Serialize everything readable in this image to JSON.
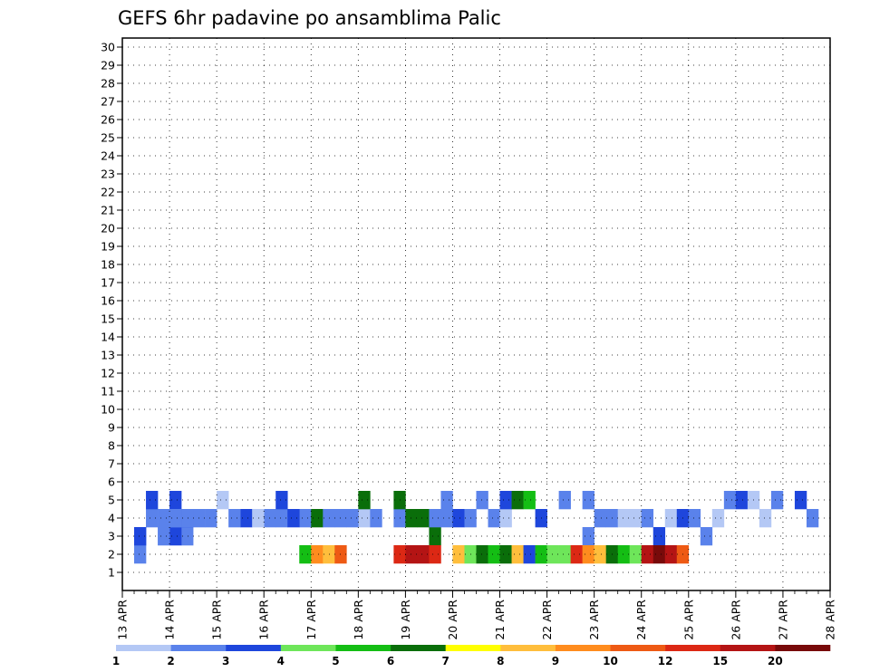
{
  "chart_data": {
    "type": "heatmap",
    "title": "GEFS 6hr padavine po ansamblima Palic",
    "xlabel": "",
    "ylabel": "",
    "x_ticks": [
      "13 APR",
      "14 APR",
      "15 APR",
      "16 APR",
      "17 APR",
      "18 APR",
      "19 APR",
      "20 APR",
      "21 APR",
      "22 APR",
      "23 APR",
      "24 APR",
      "25 APR",
      "26 APR",
      "27 APR",
      "28 APR"
    ],
    "y_ticks": [
      "1",
      "2",
      "3",
      "4",
      "5",
      "6",
      "7",
      "8",
      "9",
      "10",
      "11",
      "12",
      "13",
      "14",
      "15",
      "16",
      "17",
      "18",
      "19",
      "20",
      "21",
      "22",
      "23",
      "24",
      "25",
      "26",
      "27",
      "28",
      "29",
      "30"
    ],
    "xlim": [
      0,
      60
    ],
    "ylim": [
      0,
      30
    ],
    "grid": true,
    "legend": {
      "placement": "bottom",
      "labels": [
        "1",
        "2",
        "3",
        "4",
        "5",
        "6",
        "7",
        "8",
        "9",
        "10",
        "12",
        "15",
        "20"
      ],
      "colors": [
        "#b4c8f5",
        "#5a82eb",
        "#1e46dc",
        "#6ee65a",
        "#14be14",
        "#0a6e0a",
        "#ffff00",
        "#ffbe3c",
        "#ff8c1e",
        "#ee5a14",
        "#dc2814",
        "#b41414",
        "#780a0a"
      ]
    },
    "cells": [
      [
        2,
        1,
        2
      ],
      [
        3,
        1,
        2
      ],
      [
        3,
        5,
        2
      ],
      [
        3,
        4,
        3
      ],
      [
        4,
        4,
        2
      ],
      [
        4,
        5,
        3
      ],
      [
        4,
        2,
        2
      ],
      [
        4,
        3,
        2
      ],
      [
        5,
        2,
        3
      ],
      [
        5,
        4,
        3
      ],
      [
        4,
        4,
        2
      ],
      [
        4,
        6,
        2
      ],
      [
        4,
        10,
        3
      ],
      [
        4,
        12,
        2
      ],
      [
        4,
        13,
        2
      ],
      [
        5,
        13,
        3
      ],
      [
        4,
        15,
        2
      ],
      [
        4,
        16,
        6
      ],
      [
        4,
        17,
        2
      ],
      [
        4,
        20,
        1
      ],
      [
        5,
        20,
        6
      ],
      [
        4,
        21,
        2
      ],
      [
        4,
        23,
        2
      ],
      [
        5,
        23,
        6
      ],
      [
        4,
        24,
        6
      ],
      [
        4,
        25,
        6
      ],
      [
        3,
        26,
        6
      ],
      [
        4,
        26,
        2
      ],
      [
        4,
        27,
        2
      ],
      [
        5,
        27,
        2
      ],
      [
        4,
        28,
        3
      ],
      [
        4,
        29,
        2
      ],
      [
        5,
        30,
        2
      ],
      [
        4,
        31,
        2
      ],
      [
        4,
        32,
        1
      ],
      [
        5,
        32,
        3
      ],
      [
        5,
        33,
        6
      ],
      [
        5,
        34,
        5
      ],
      [
        4,
        35,
        3
      ],
      [
        5,
        37,
        2
      ],
      [
        3,
        39,
        2
      ],
      [
        5,
        39,
        2
      ],
      [
        4,
        40,
        2
      ],
      [
        4,
        41,
        2
      ],
      [
        4,
        42,
        1
      ],
      [
        4,
        43,
        1
      ],
      [
        4,
        44,
        2
      ],
      [
        3,
        45,
        3
      ],
      [
        4,
        46,
        1
      ],
      [
        4,
        47,
        3
      ],
      [
        4,
        48,
        2
      ],
      [
        3,
        49,
        2
      ],
      [
        4,
        50,
        1
      ],
      [
        5,
        51,
        2
      ],
      [
        5,
        52,
        3
      ],
      [
        5,
        53,
        1
      ],
      [
        4,
        54,
        1
      ],
      [
        5,
        55,
        2
      ],
      [
        5,
        57,
        3
      ],
      [
        4,
        58,
        2
      ],
      [
        3,
        1,
        3
      ],
      [
        3,
        3,
        2
      ],
      [
        4,
        5,
        2
      ],
      [
        4,
        7,
        2
      ],
      [
        5,
        8,
        1
      ],
      [
        4,
        9,
        2
      ],
      [
        4,
        11,
        1
      ],
      [
        4,
        14,
        3
      ],
      [
        4,
        18,
        2
      ],
      [
        4,
        19,
        2
      ],
      [
        2,
        15,
        5
      ],
      [
        2,
        16,
        9
      ],
      [
        2,
        17,
        8
      ],
      [
        2,
        18,
        10
      ],
      [
        2,
        23,
        11
      ],
      [
        2,
        24,
        12
      ],
      [
        2,
        25,
        12
      ],
      [
        2,
        26,
        11
      ],
      [
        2,
        28,
        8
      ],
      [
        2,
        29,
        4
      ],
      [
        2,
        30,
        6
      ],
      [
        2,
        31,
        5
      ],
      [
        2,
        32,
        6
      ],
      [
        2,
        33,
        8
      ],
      [
        2,
        34,
        3
      ],
      [
        2,
        35,
        5
      ],
      [
        2,
        36,
        4
      ],
      [
        2,
        37,
        4
      ],
      [
        2,
        38,
        11
      ],
      [
        2,
        39,
        9
      ],
      [
        2,
        40,
        8
      ],
      [
        2,
        41,
        6
      ],
      [
        2,
        42,
        5
      ],
      [
        2,
        43,
        4
      ],
      [
        2,
        44,
        12
      ],
      [
        2,
        45,
        13
      ],
      [
        2,
        46,
        12
      ],
      [
        2,
        47,
        10
      ]
    ],
    "notes": "cells are [row_y(1-30), col_x(6hr step from 13 APR 00z), category(1-13)]"
  }
}
